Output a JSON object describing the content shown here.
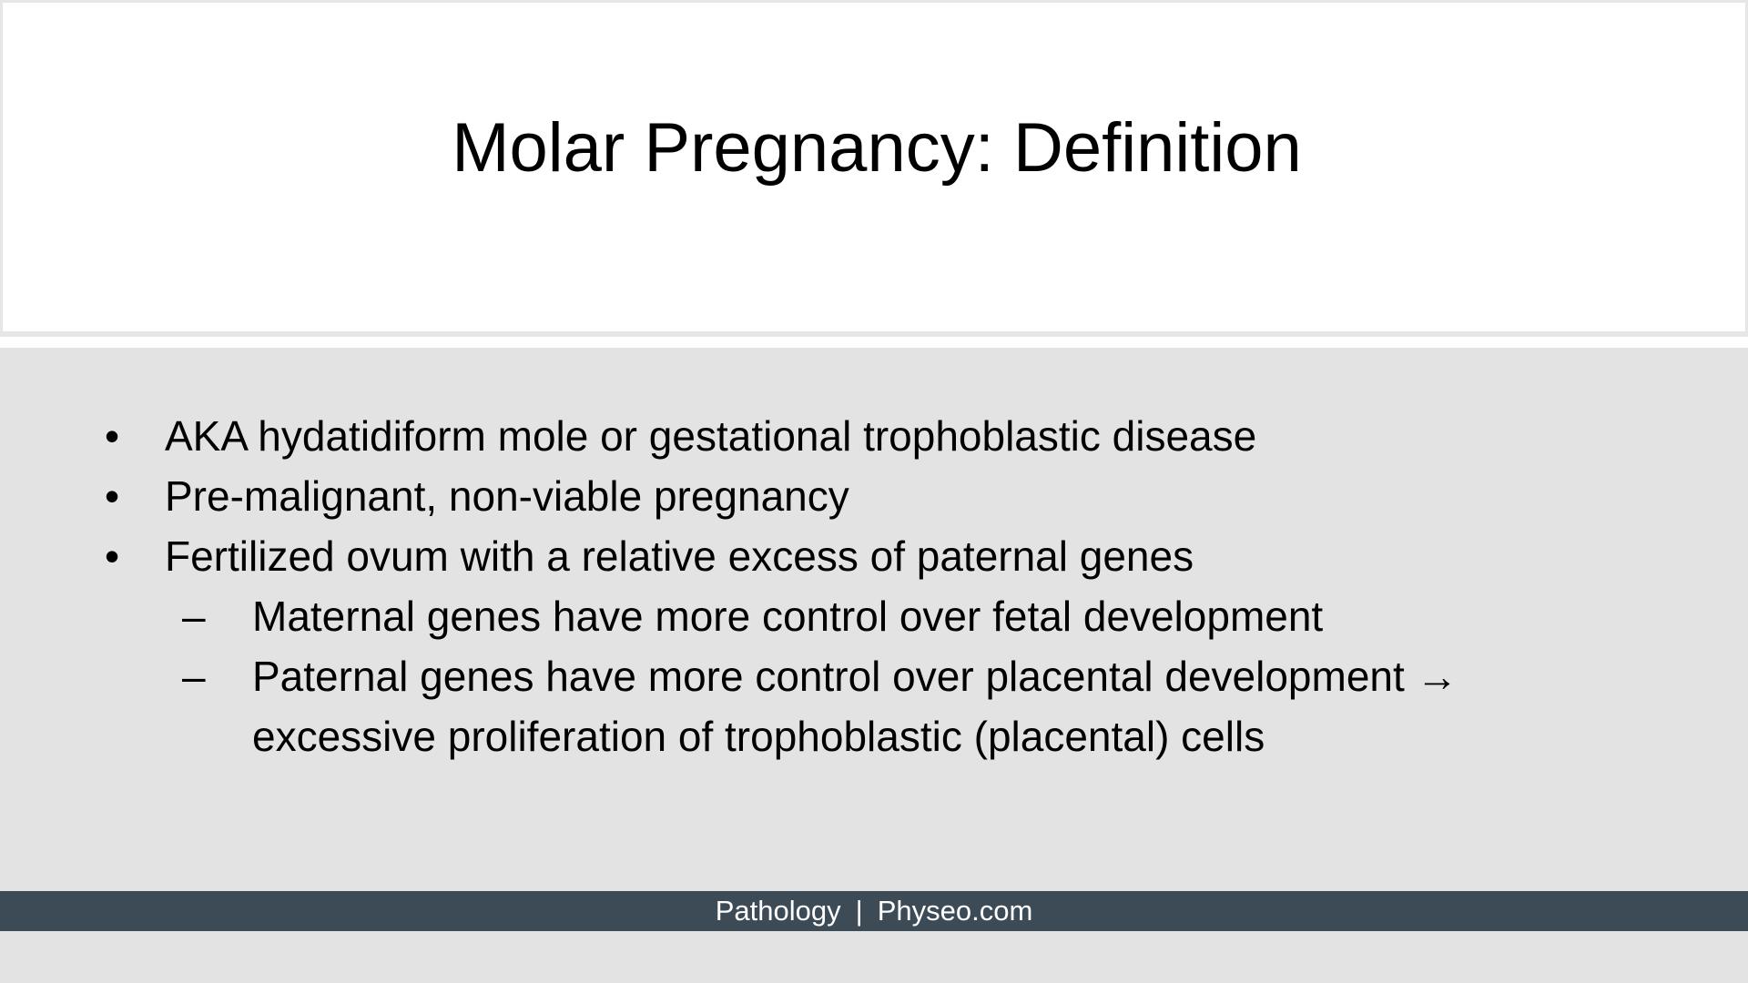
{
  "slide": {
    "title": "Molar Pregnancy: Definition",
    "bullets": [
      {
        "marker": "•",
        "text": "AKA hydatidiform mole or gestational trophoblastic disease"
      },
      {
        "marker": "•",
        "text": "Pre-malignant, non-viable pregnancy"
      },
      {
        "marker": "•",
        "text": "Fertilized ovum with a relative excess of paternal genes"
      }
    ],
    "subbullets": [
      {
        "marker": "–",
        "text": "Maternal genes have more control over fetal development"
      },
      {
        "marker": "–",
        "text": "Paternal genes have more control over placental development → excessive proliferation of trophoblastic (placental) cells"
      }
    ]
  },
  "footer": {
    "left": "Pathology",
    "separator": "|",
    "right": "Physeo.com"
  },
  "colors": {
    "content_background": "#e3e3e3",
    "title_background": "#ffffff",
    "footer_background": "#3d4b57",
    "text": "#000000"
  }
}
